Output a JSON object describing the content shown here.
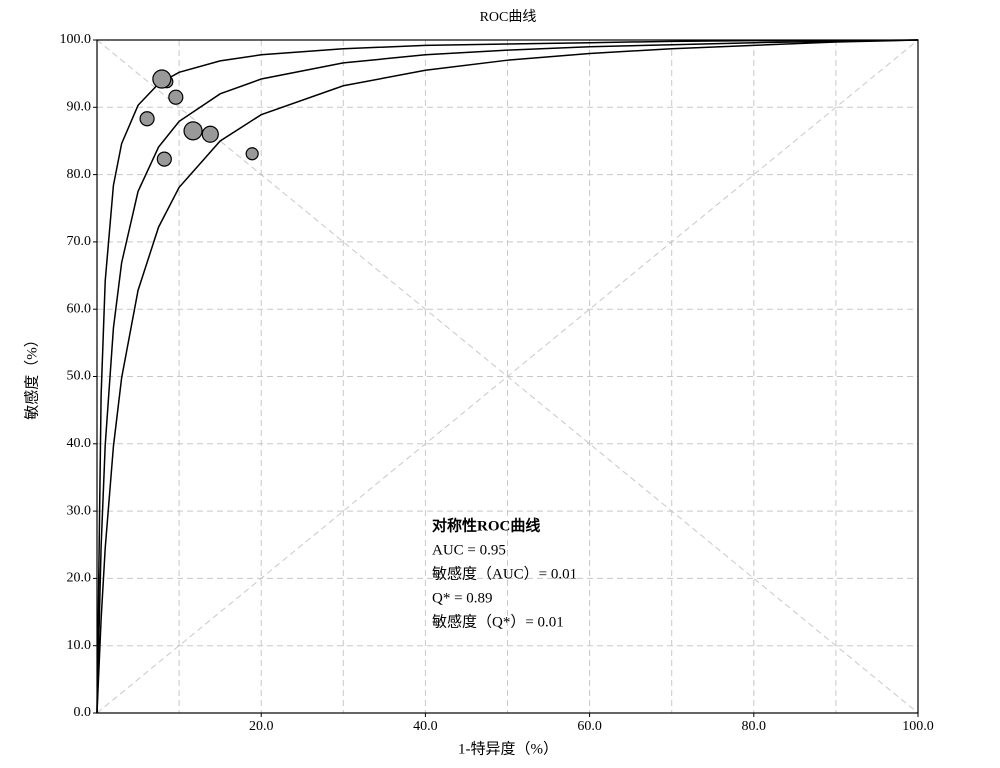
{
  "chart_data": [
    {
      "type": "line",
      "title": "ROC曲线",
      "x_label": "1-特异度（%）",
      "y_label": "敏感度（%）",
      "xlim": [
        0,
        100
      ],
      "ylim": [
        0,
        100
      ],
      "xticks": [
        {
          "value": 20,
          "label": "20.0"
        },
        {
          "value": 40,
          "label": "40.0"
        },
        {
          "value": 60,
          "label": "60.0"
        },
        {
          "value": 80,
          "label": "80.0"
        },
        {
          "value": 100,
          "label": "100.0"
        }
      ],
      "xminor": [
        10,
        30,
        50,
        70,
        90
      ],
      "yticks": [
        {
          "value": 0,
          "label": "0.0"
        },
        {
          "value": 10,
          "label": "10.0"
        },
        {
          "value": 20,
          "label": "20.0"
        },
        {
          "value": 30,
          "label": "30.0"
        },
        {
          "value": 40,
          "label": "40.0"
        },
        {
          "value": 50,
          "label": "50.0"
        },
        {
          "value": 60,
          "label": "60.0"
        },
        {
          "value": 70,
          "label": "70.0"
        },
        {
          "value": 80,
          "label": "80.0"
        },
        {
          "value": 90,
          "label": "90.0"
        },
        {
          "value": 100,
          "label": "100.0"
        }
      ],
      "grid": true,
      "x": [
        0,
        0.5,
        1,
        2,
        3,
        5,
        7.5,
        10,
        15,
        20,
        30,
        40,
        50,
        60,
        70,
        80,
        90,
        100
      ],
      "series": [
        {
          "color": "#000000",
          "values": [
            0,
            47.2,
            64.2,
            78.4,
            84.6,
            90.3,
            93.5,
            95.2,
            96.9,
            97.8,
            98.7,
            99.2,
            99.4,
            99.6,
            99.8,
            99.9,
            99.9,
            100
          ]
        },
        {
          "color": "#000000",
          "values": [
            0,
            24.7,
            39.8,
            57.2,
            66.9,
            77.5,
            84.1,
            87.9,
            92.0,
            94.2,
            96.6,
            97.8,
            98.5,
            99.0,
            99.3,
            99.6,
            99.8,
            100
          ]
        },
        {
          "color": "#000000",
          "values": [
            0,
            13.9,
            24.5,
            39.6,
            49.8,
            62.8,
            72.2,
            78.1,
            85.0,
            88.9,
            93.2,
            95.5,
            97.0,
            98.0,
            98.7,
            99.2,
            99.7,
            100
          ]
        }
      ],
      "annotations": [
        "对称性ROC曲线",
        "AUC = 0.95",
        "敏感度（AUC）= 0.01",
        "Q* = 0.89",
        "敏感度（Q*）= 0.01"
      ]
    },
    {
      "type": "scatter",
      "color": "#999999",
      "x": [
        8.5,
        7.9,
        9.6,
        6.1,
        11.7,
        13.8,
        8.2,
        18.9
      ],
      "values": [
        93.8,
        94.2,
        91.5,
        88.3,
        86.5,
        86.0,
        82.3,
        83.1
      ],
      "sizes": [
        6,
        9,
        7,
        7,
        9,
        8,
        7,
        6
      ]
    }
  ]
}
